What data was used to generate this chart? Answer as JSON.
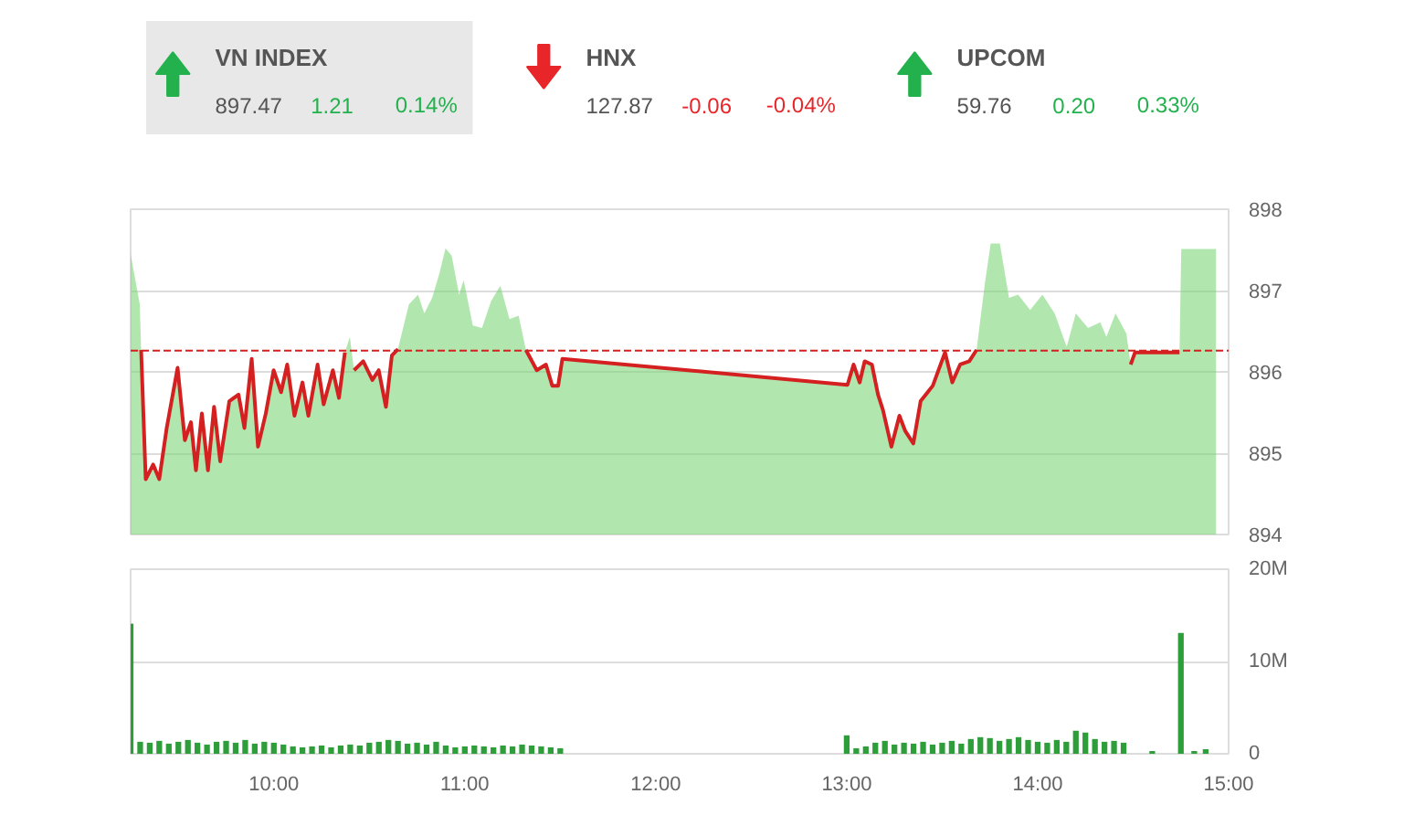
{
  "chart_data": [
    {
      "type": "other",
      "data_labels": true,
      "categories": [
        "VN INDEX",
        "HNX",
        "UPCOM"
      ],
      "colors": [
        "#22b14c",
        "#e8262a",
        "#22b14c"
      ],
      "series": [
        {
          "values": [
            897.47,
            127.87,
            59.76
          ]
        },
        {
          "values": [
            1.21,
            -0.06,
            0.2
          ],
          "value_labels": [
            "1.21",
            "-0.06",
            "0.20"
          ]
        },
        {
          "values": [
            0.14,
            -0.04,
            0.33
          ],
          "value_labels": [
            "0.14%",
            "-0.04%",
            "0.33%"
          ]
        }
      ]
    },
    {
      "type": "area",
      "xlim": [
        9.25,
        15
      ],
      "ylim": [
        894,
        898
      ],
      "yticks": [
        894,
        895,
        896,
        897,
        898
      ],
      "tick_labels": "y",
      "grid": "y",
      "x": [
        9.25,
        9.298,
        9.305,
        9.329,
        9.368,
        9.4,
        9.439,
        9.496,
        9.534,
        9.566,
        9.592,
        9.623,
        9.655,
        9.687,
        9.719,
        9.767,
        9.815,
        9.846,
        9.884,
        9.917,
        9.958,
        9.999,
        10.038,
        10.07,
        10.108,
        10.15,
        10.181,
        10.229,
        10.261,
        10.309,
        10.341,
        10.372,
        10.398,
        10.42,
        10.468,
        10.516,
        10.549,
        10.587,
        10.618,
        10.65,
        10.707,
        10.755,
        10.788,
        10.829,
        10.867,
        10.899,
        10.931,
        10.97,
        10.994,
        11.042,
        11.09,
        11.138,
        11.186,
        11.234,
        11.282,
        11.32,
        11.377,
        11.425,
        11.458,
        11.489,
        11.511,
        13.004,
        13.036,
        13.068,
        13.094,
        13.132,
        13.164,
        13.19,
        13.234,
        13.276,
        13.307,
        13.349,
        13.387,
        13.451,
        13.515,
        13.553,
        13.594,
        13.642,
        13.68,
        13.722,
        13.754,
        13.802,
        13.85,
        13.898,
        13.961,
        14.025,
        14.089,
        14.152,
        14.2,
        14.264,
        14.328,
        14.36,
        14.408,
        14.465,
        14.487,
        14.51,
        14.743,
        14.752,
        14.934
      ],
      "series": [
        {
          "type": "area",
          "color": "#7ed67a",
          "values": [
            897.45,
            896.83,
            896.27,
            894.68,
            894.86,
            894.68,
            895.31,
            896.05,
            895.16,
            895.38,
            894.79,
            895.49,
            894.79,
            895.57,
            894.9,
            895.64,
            895.72,
            895.31,
            896.16,
            895.08,
            895.49,
            896.02,
            895.75,
            896.09,
            895.46,
            895.87,
            895.46,
            896.09,
            895.6,
            896.02,
            895.68,
            896.24,
            896.43,
            896.02,
            896.13,
            895.9,
            896.02,
            895.57,
            896.2,
            896.28,
            896.83,
            896.95,
            896.72,
            896.91,
            897.21,
            897.52,
            897.43,
            896.95,
            897.13,
            896.57,
            896.54,
            896.87,
            897.06,
            896.65,
            896.69,
            896.27,
            896.02,
            896.09,
            895.83,
            895.83,
            896.16,
            895.84,
            896.09,
            895.87,
            896.13,
            896.09,
            895.72,
            895.53,
            895.08,
            895.46,
            895.27,
            895.12,
            895.64,
            895.83,
            896.24,
            895.87,
            896.09,
            896.13,
            896.27,
            897.06,
            897.58,
            897.58,
            896.91,
            896.95,
            896.76,
            896.95,
            896.72,
            896.31,
            896.72,
            896.54,
            896.61,
            896.43,
            896.72,
            896.47,
            896.09,
            896.24,
            896.24,
            897.51,
            897.51
          ]
        },
        {
          "type": "line",
          "color": "#d42020",
          "values": [
            null,
            null,
            896.27,
            894.68,
            894.86,
            894.68,
            895.31,
            896.05,
            895.16,
            895.38,
            894.79,
            895.49,
            894.79,
            895.57,
            894.9,
            895.64,
            895.72,
            895.31,
            896.16,
            895.08,
            895.49,
            896.02,
            895.75,
            896.09,
            895.46,
            895.87,
            895.46,
            896.09,
            895.6,
            896.02,
            895.68,
            896.24,
            null,
            896.02,
            896.13,
            895.9,
            896.02,
            895.57,
            896.2,
            896.28,
            null,
            null,
            null,
            null,
            null,
            null,
            null,
            null,
            null,
            null,
            null,
            null,
            null,
            null,
            null,
            896.27,
            896.02,
            896.09,
            895.83,
            895.83,
            896.16,
            895.84,
            896.09,
            895.87,
            896.13,
            896.09,
            895.72,
            895.53,
            895.08,
            895.46,
            895.27,
            895.12,
            895.64,
            895.83,
            896.24,
            895.87,
            896.09,
            896.13,
            896.27,
            null,
            null,
            null,
            null,
            null,
            null,
            null,
            null,
            null,
            null,
            null,
            null,
            null,
            null,
            null,
            896.09,
            896.24,
            896.24,
            null,
            null
          ]
        }
      ],
      "ref_lines": [
        {
          "axis": "y",
          "value": 896.26,
          "color": "#d42020",
          "line_style": "dashed"
        }
      ]
    },
    {
      "type": "bar",
      "color": "#2e9e3a",
      "xlim": [
        9.25,
        15
      ],
      "ylim": [
        0,
        20
      ],
      "yticks": [
        {
          "value": 0,
          "label": "0"
        },
        {
          "value": 10,
          "label": "10M"
        },
        {
          "value": 20,
          "label": "20M"
        }
      ],
      "xticks": [
        {
          "value": 10,
          "label": "10:00"
        },
        {
          "value": 11,
          "label": "11:00"
        },
        {
          "value": 12,
          "label": "12:00"
        },
        {
          "value": 13,
          "label": "13:00"
        },
        {
          "value": 14,
          "label": "14:00"
        },
        {
          "value": 15,
          "label": "15:00"
        }
      ],
      "grid": "y",
      "x": [
        9.25,
        9.3,
        9.35,
        9.4,
        9.45,
        9.5,
        9.55,
        9.6,
        9.65,
        9.7,
        9.75,
        9.8,
        9.85,
        9.9,
        9.95,
        10.0,
        10.05,
        10.1,
        10.15,
        10.2,
        10.25,
        10.3,
        10.35,
        10.4,
        10.45,
        10.5,
        10.55,
        10.6,
        10.65,
        10.7,
        10.75,
        10.8,
        10.85,
        10.9,
        10.95,
        11.0,
        11.05,
        11.1,
        11.15,
        11.2,
        11.25,
        11.3,
        11.35,
        11.4,
        11.45,
        11.5,
        13.0,
        13.05,
        13.1,
        13.15,
        13.2,
        13.25,
        13.3,
        13.35,
        13.4,
        13.45,
        13.5,
        13.55,
        13.6,
        13.65,
        13.7,
        13.75,
        13.8,
        13.85,
        13.9,
        13.95,
        14.0,
        14.05,
        14.1,
        14.15,
        14.2,
        14.25,
        14.3,
        14.35,
        14.4,
        14.45,
        14.6,
        14.75,
        14.82,
        14.88
      ],
      "values": [
        14.1,
        1.3,
        1.2,
        1.4,
        1.1,
        1.3,
        1.5,
        1.2,
        1.0,
        1.3,
        1.4,
        1.2,
        1.5,
        1.1,
        1.3,
        1.2,
        1.0,
        0.8,
        0.7,
        0.8,
        0.9,
        0.7,
        0.9,
        1.0,
        0.9,
        1.2,
        1.3,
        1.5,
        1.4,
        1.1,
        1.2,
        1.0,
        1.3,
        0.9,
        0.7,
        0.8,
        0.9,
        0.8,
        0.7,
        0.9,
        0.8,
        1.0,
        0.9,
        0.8,
        0.7,
        0.6,
        2.0,
        0.6,
        0.8,
        1.2,
        1.4,
        1.0,
        1.2,
        1.1,
        1.3,
        1.0,
        1.2,
        1.4,
        1.1,
        1.6,
        1.8,
        1.7,
        1.4,
        1.6,
        1.8,
        1.5,
        1.3,
        1.2,
        1.5,
        1.3,
        2.5,
        2.3,
        1.6,
        1.3,
        1.4,
        1.2,
        0.3,
        13.1,
        0.3,
        0.5
      ]
    }
  ]
}
